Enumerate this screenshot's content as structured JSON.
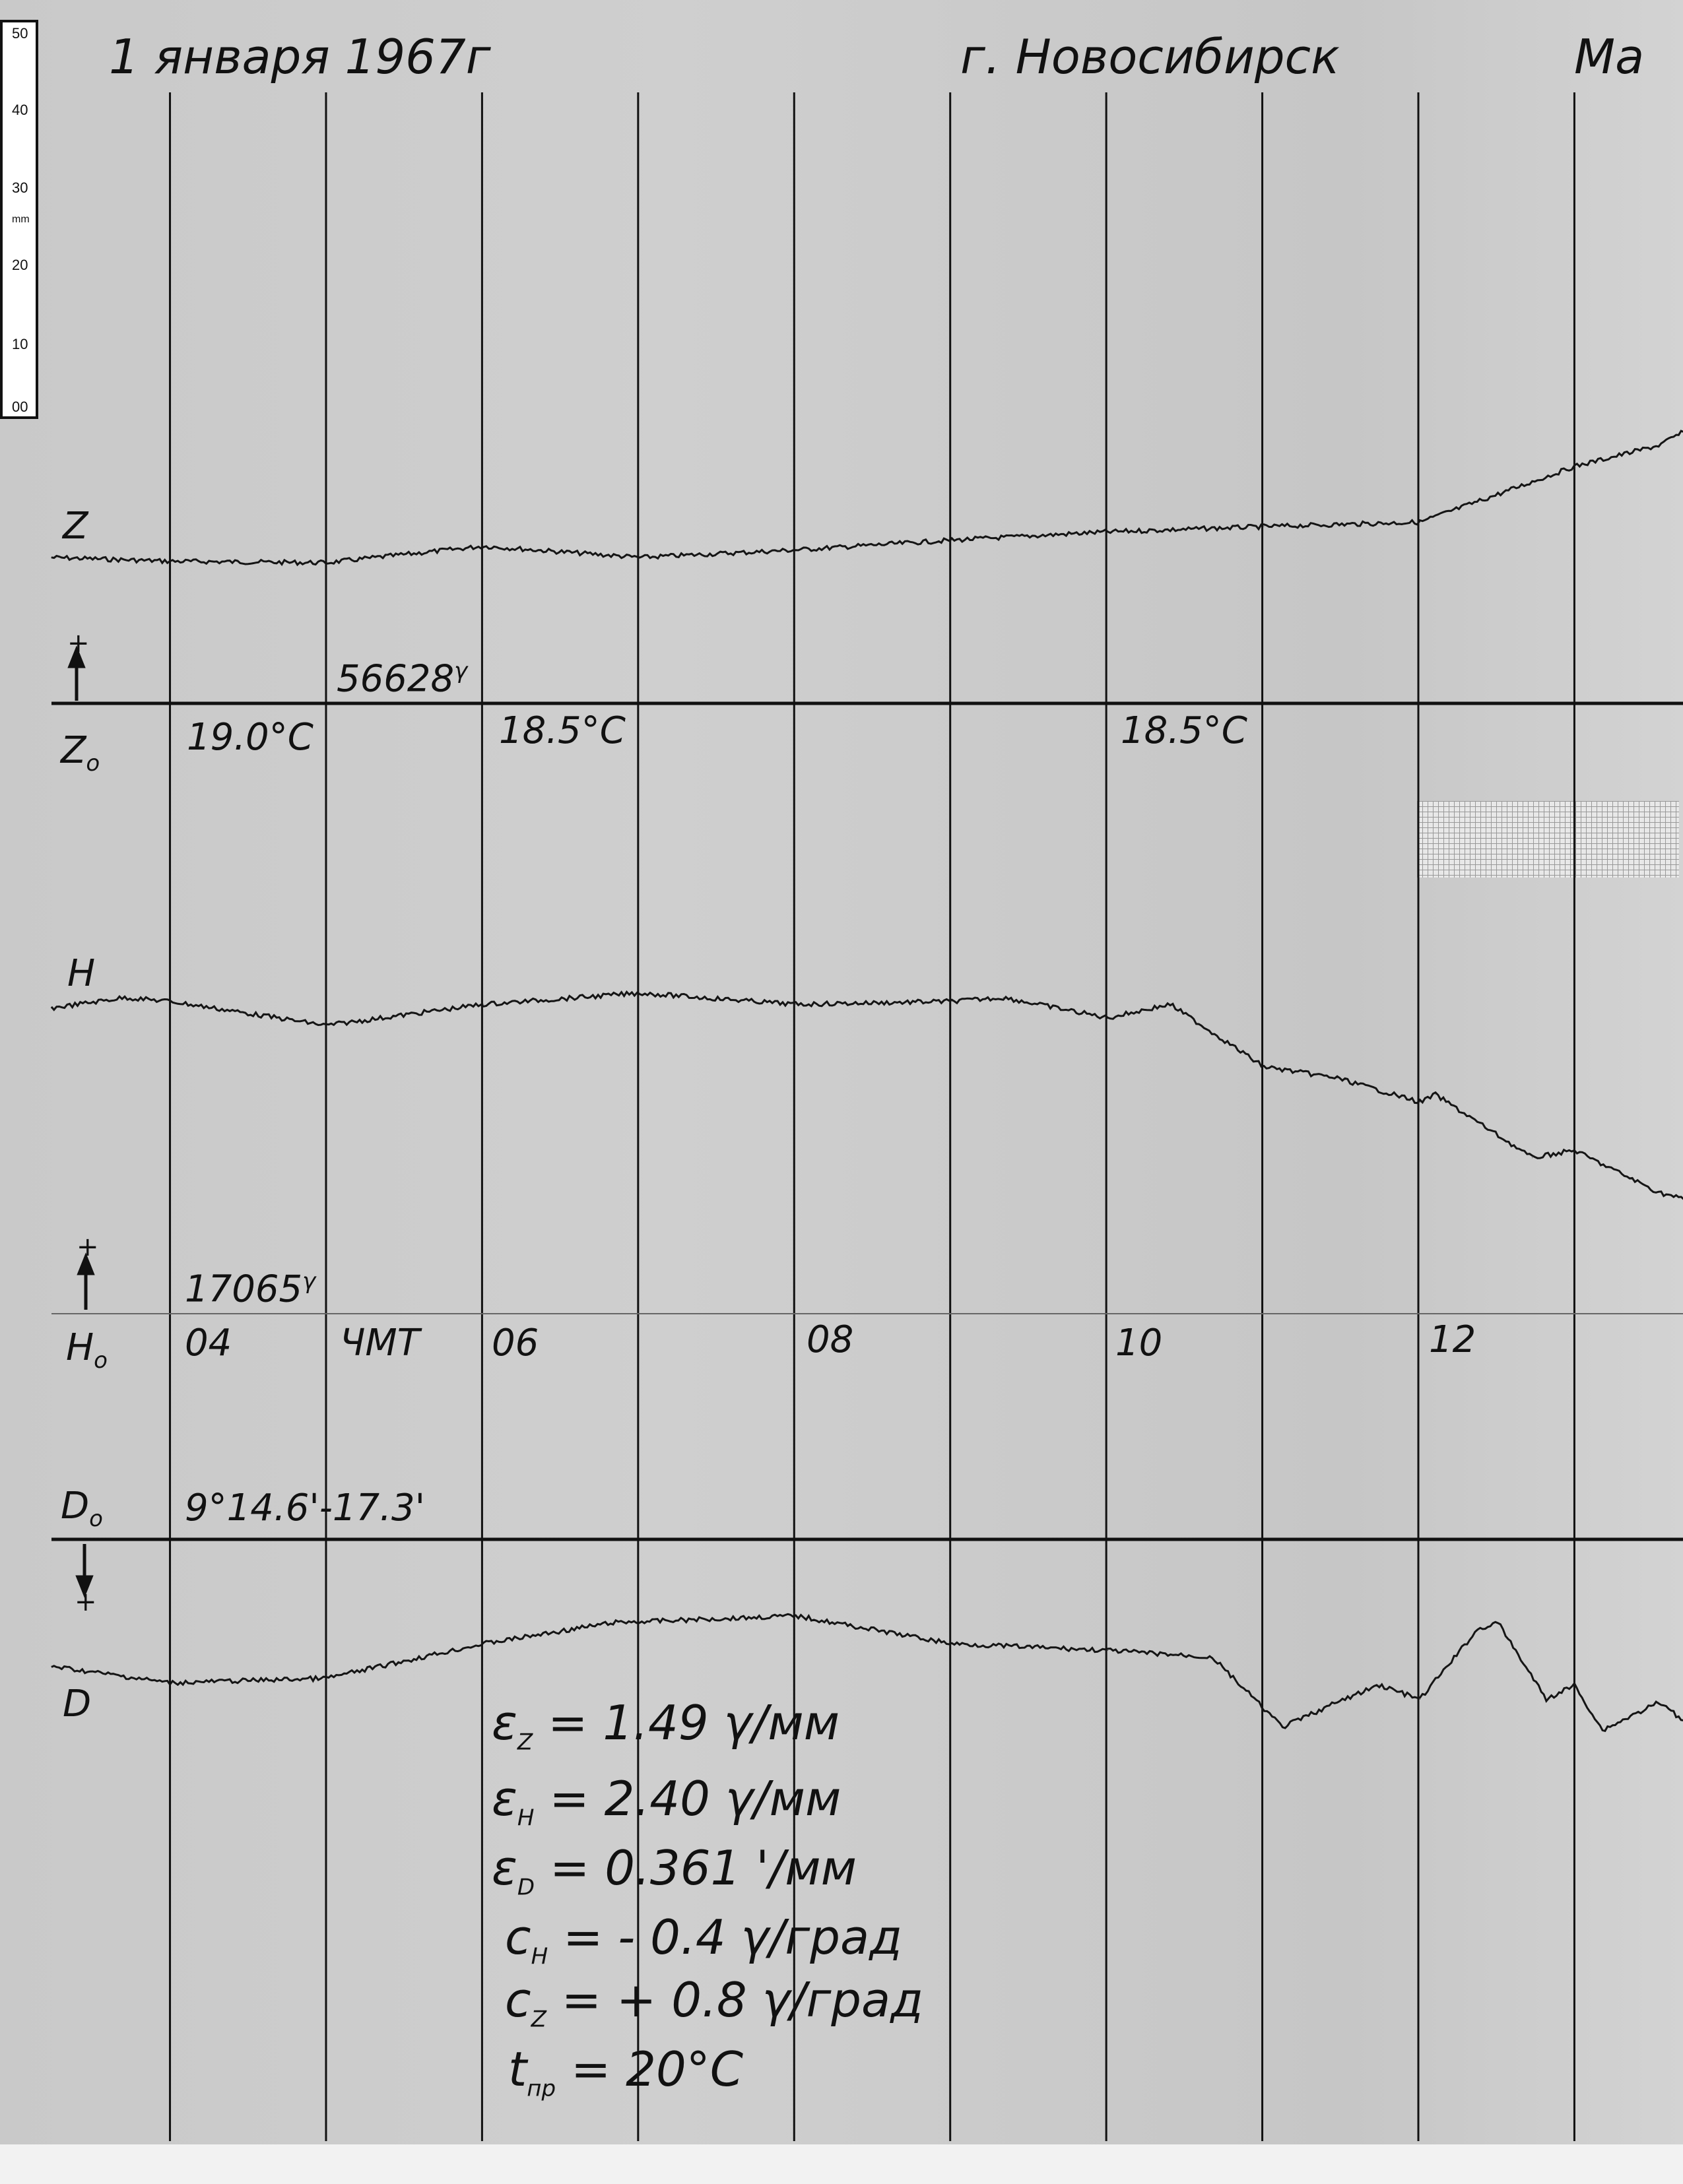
{
  "header": {
    "date": "1 января 1967г",
    "city": "г. Новосибирск",
    "truncated": "Ма"
  },
  "ruler": {
    "labels": [
      "50",
      "40",
      "30",
      "mm",
      "20",
      "10",
      "00"
    ]
  },
  "z_section": {
    "label": "Z",
    "plus": "+",
    "base_label": "Z",
    "base_sub": "o",
    "base_value": "56628",
    "unit": "γ",
    "temps": [
      "19.0°C",
      "18.5°C",
      "18.5°C"
    ]
  },
  "h_section": {
    "label": "H",
    "plus": "+",
    "base_label": "H",
    "base_sub": "o",
    "base_value": "17065",
    "unit": "γ"
  },
  "time_axis": {
    "labels": [
      "04",
      "ЧМТ",
      "06",
      "08",
      "10",
      "12"
    ]
  },
  "d_section": {
    "label": "D",
    "plus": "+",
    "base_label": "D",
    "base_sub": "o",
    "base_value": "9°14.6'-17.3'"
  },
  "constants": [
    {
      "sym": "ε",
      "sub": "Z",
      "eq": "= 1.49 ",
      "unit": "γ/мм"
    },
    {
      "sym": "ε",
      "sub": "H",
      "eq": "= 2.40 ",
      "unit": "γ/мм"
    },
    {
      "sym": "ε",
      "sub": "D",
      "eq": "= 0.361 ",
      "unit": "'/мм"
    },
    {
      "sym": "c",
      "sub": "H",
      "eq": "= - 0.4 ",
      "unit": "γ/град"
    },
    {
      "sym": "c",
      "sub": "Z",
      "eq": "= + 0.8 ",
      "unit": "γ/град"
    },
    {
      "sym": "t",
      "sub": "пр",
      "eq": "= 20°C",
      "unit": ""
    }
  ],
  "colors": {
    "paper": "#cbcbcb",
    "ink": "#111111"
  },
  "chart_data": {
    "type": "line",
    "title": "",
    "xlabel": "ЧМТ",
    "ylabel": "",
    "x_ticks": [
      "04",
      "06",
      "08",
      "10",
      "12"
    ],
    "xlim": [
      3.24,
      13.7
    ],
    "grid": true,
    "series_note_units": "x: UT hours; y: trace deflection from baseline, mm",
    "series": [
      {
        "name": "Z",
        "x": [
          3.24,
          4.0,
          5.0,
          6.01,
          7.01,
          8.01,
          9.01,
          10.01,
          11.01,
          12.01,
          12.51,
          13.0,
          13.54,
          13.7
        ],
        "y": [
          19.4,
          18.9,
          18.7,
          20.9,
          19.4,
          20.4,
          21.7,
          22.8,
          23.5,
          24.1,
          27.8,
          31.5,
          34.3,
          36.1
        ]
      },
      {
        "name": "H",
        "x": [
          3.24,
          3.71,
          4.0,
          5.0,
          6.01,
          7.01,
          8.01,
          9.01,
          9.34,
          10.01,
          10.41,
          11.01,
          11.48,
          12.01,
          12.11,
          12.73,
          13.0,
          13.54,
          13.7
        ],
        "y": [
          40.6,
          42.0,
          41.5,
          38.3,
          41.1,
          42.6,
          41.1,
          41.5,
          42.0,
          39.3,
          41.1,
          32.8,
          31.3,
          28.1,
          29.1,
          20.7,
          21.7,
          16.1,
          15.2
        ]
      },
      {
        "name": "D",
        "x": [
          3.24,
          4.0,
          5.0,
          6.01,
          6.84,
          8.01,
          9.01,
          10.01,
          10.68,
          11.13,
          11.48,
          11.75,
          12.01,
          12.38,
          12.51,
          12.82,
          13.0,
          13.18,
          13.54,
          13.7
        ],
        "y": [
          16.9,
          19.1,
          18.5,
          13.9,
          11.1,
          10.2,
          13.9,
          14.8,
          15.7,
          25.0,
          21.7,
          19.4,
          21.3,
          12.0,
          11.1,
          21.3,
          19.4,
          25.4,
          21.7,
          24.1
        ]
      }
    ]
  }
}
